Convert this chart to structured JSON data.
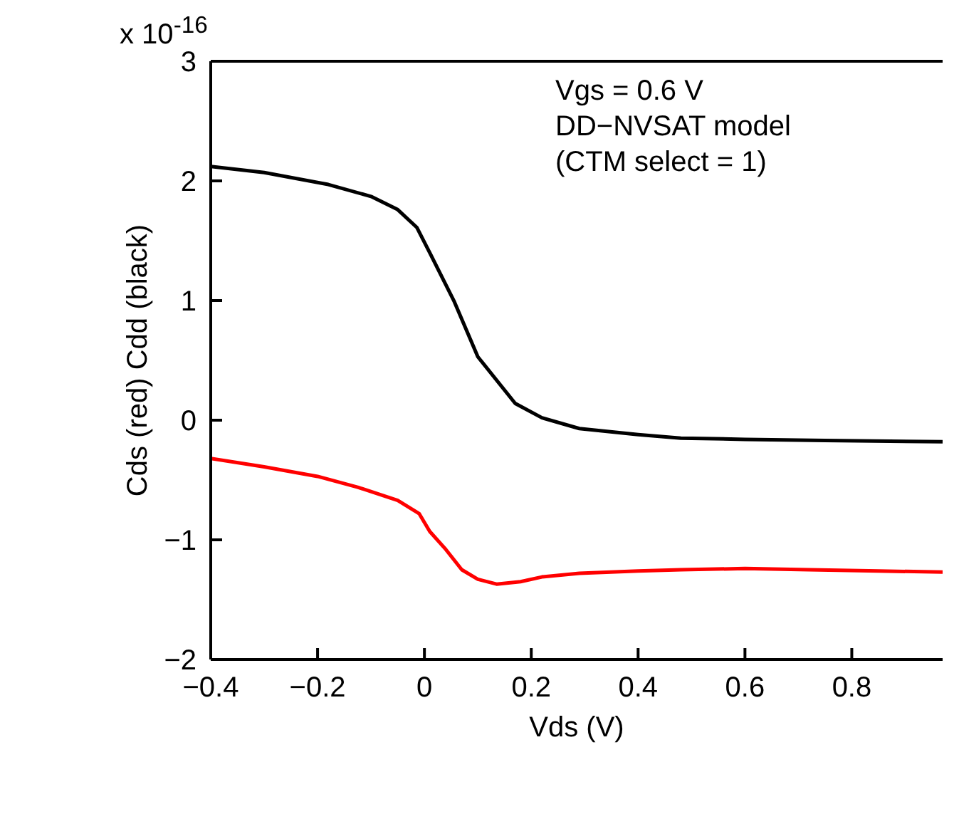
{
  "chart_data": {
    "type": "line",
    "xlabel": "Vds (V)",
    "ylabel": "Cds (red) Cdd (black)",
    "annotations": [
      "x 10$^{-16}$",
      "Vgs = 0.6 V",
      "DD−NVSAT model",
      "(CTM select = 1)"
    ],
    "xlim": [
      -0.4,
      0.97
    ],
    "xticks": [
      -0.4,
      -0.2,
      0,
      0.2,
      0.4,
      0.6,
      0.8
    ],
    "ylim": [
      -2,
      3
    ],
    "yticks": [
      -2,
      -1,
      0,
      1,
      2,
      3
    ],
    "grid": false,
    "legend": false,
    "marker": "none",
    "line_style": "solid",
    "series": [
      {
        "color": "#000000",
        "x": [
          -0.4,
          -0.3,
          -0.18,
          -0.1,
          -0.05,
          -0.014,
          0.01,
          0.056,
          0.1,
          0.17,
          0.22,
          0.29,
          0.4,
          0.48,
          0.6,
          0.75,
          0.97
        ],
        "values": [
          2.12,
          2.07,
          1.97,
          1.87,
          1.76,
          1.61,
          1.4,
          0.99,
          0.53,
          0.14,
          0.02,
          -0.07,
          -0.12,
          -0.15,
          -0.16,
          -0.17,
          -0.18
        ]
      },
      {
        "color": "#ff0000",
        "x": [
          -0.4,
          -0.3,
          -0.2,
          -0.125,
          -0.05,
          -0.01,
          0.01,
          0.04,
          0.07,
          0.1,
          0.135,
          0.18,
          0.22,
          0.29,
          0.4,
          0.48,
          0.6,
          0.72,
          0.85,
          0.97
        ],
        "values": [
          -0.32,
          -0.39,
          -0.47,
          -0.56,
          -0.67,
          -0.78,
          -0.93,
          -1.08,
          -1.25,
          -1.33,
          -1.37,
          -1.35,
          -1.31,
          -1.28,
          -1.26,
          -1.25,
          -1.24,
          -1.25,
          -1.26,
          -1.27
        ]
      }
    ]
  }
}
